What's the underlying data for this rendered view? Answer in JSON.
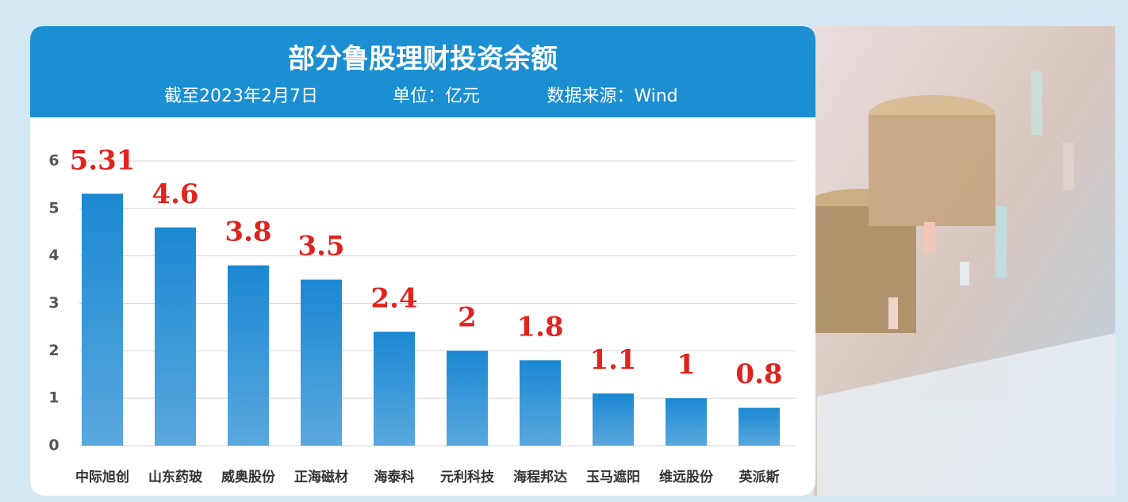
{
  "chart_data": {
    "type": "bar",
    "title": "部分鲁股理财投资余额",
    "subtitle": [
      "截至2023年2月7日",
      "单位：亿元",
      "数据来源：Wind"
    ],
    "categories": [
      "中际旭创",
      "山东药玻",
      "威奥股份",
      "正海磁材",
      "海泰科",
      "元利科技",
      "海程邦达",
      "玉马遮阳",
      "维远股份",
      "英派斯"
    ],
    "values": [
      5.31,
      4.6,
      3.8,
      3.5,
      2.4,
      2,
      1.8,
      1.1,
      1,
      0.8
    ],
    "color": "#1e8fd6",
    "label_color": "#e0231e",
    "ylim": [
      0,
      6
    ],
    "yticks": [
      0,
      1,
      2,
      3,
      4,
      5,
      6
    ],
    "grid": true
  }
}
